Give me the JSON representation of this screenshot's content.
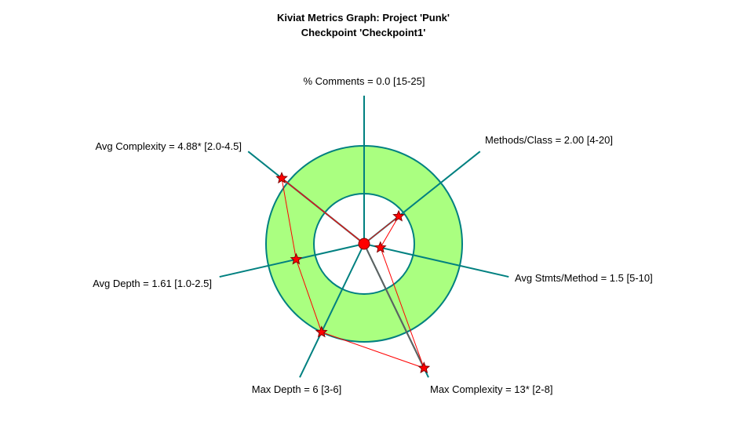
{
  "chart_data": {
    "type": "radar",
    "title": "Kiviat Metrics Graph: Project 'Punk'",
    "subtitle": "Checkpoint 'Checkpoint1'",
    "axes": [
      {
        "label": "% Comments = 0.0 [15-25]",
        "metric": "% Comments",
        "value": 0.0,
        "min": 15,
        "max": 25
      },
      {
        "label": "Methods/Class = 2.00 [4-20]",
        "metric": "Methods/Class",
        "value": 2.0,
        "min": 4,
        "max": 20
      },
      {
        "label": "Avg Stmts/Method = 1.5 [5-10]",
        "metric": "Avg Stmts/Method",
        "value": 1.5,
        "min": 5,
        "max": 10
      },
      {
        "label": "Max Complexity = 13* [2-8]",
        "metric": "Max Complexity",
        "value": 13,
        "min": 2,
        "max": 8
      },
      {
        "label": "Max Depth = 6 [3-6]",
        "metric": "Max Depth",
        "value": 6,
        "min": 3,
        "max": 6
      },
      {
        "label": "Avg Depth = 1.61 [1.0-2.5]",
        "metric": "Avg Depth",
        "value": 1.61,
        "min": 1.0,
        "max": 2.5
      },
      {
        "label": "Avg Complexity = 4.88* [2.0-4.5]",
        "metric": "Avg Complexity",
        "value": 4.88,
        "min": 2.0,
        "max": 4.5
      }
    ]
  },
  "colors": {
    "band_fill": "#aaff80",
    "ring_stroke": "#008080",
    "axis_stroke": "#008080",
    "polygon_stroke": "#ff0000",
    "marker_fill": "#ff0000",
    "marker_stroke": "#800000",
    "overflow_stroke": "#606060"
  }
}
